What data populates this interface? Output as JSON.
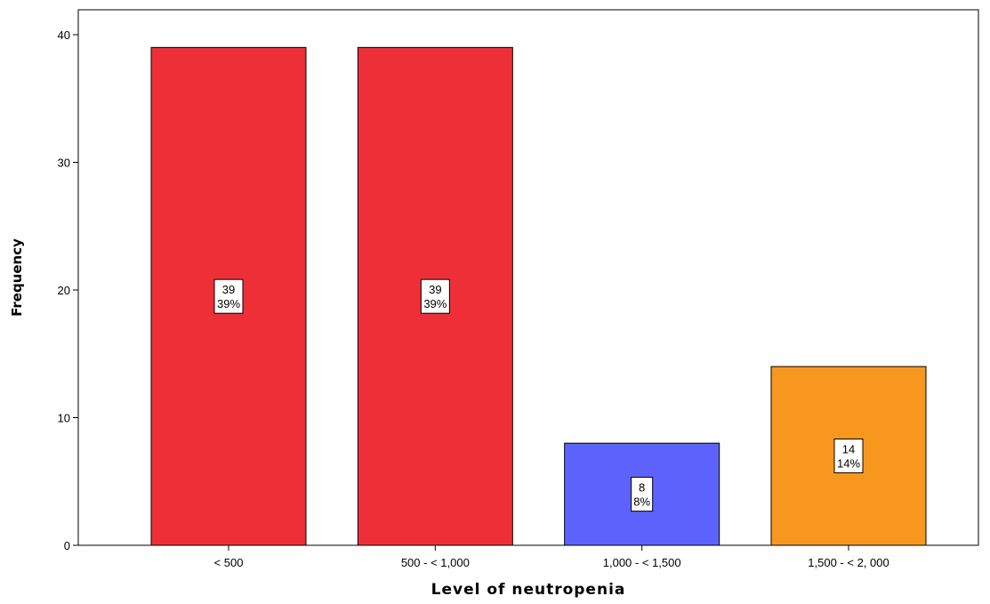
{
  "chart_data": {
    "type": "bar",
    "categories": [
      "< 500",
      "500 - < 1,000",
      "1,000 - < 1,500",
      "1,500 - < 2, 000"
    ],
    "values": [
      39,
      39,
      8,
      14
    ],
    "percent_labels": [
      "39%",
      "39%",
      "8%",
      "14%"
    ],
    "value_labels": [
      "39",
      "39",
      "8",
      "14"
    ],
    "bar_colors": [
      "#ef2f38",
      "#ef2f38",
      "#5d62fd",
      "#f7971e"
    ],
    "xlabel": "Level of neutropenia",
    "ylabel": "Frequency",
    "ylim": [
      0,
      40
    ],
    "yticks": [
      "0",
      "10",
      "20",
      "30",
      "40"
    ],
    "grid": false,
    "legend": "none"
  }
}
